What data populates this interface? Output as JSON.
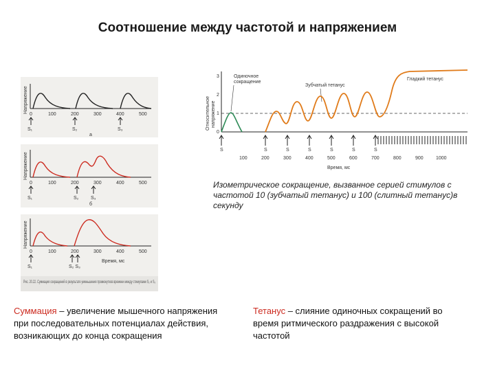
{
  "title": "Соотношение между частотой и напряжением",
  "left_panels": {
    "ylabel": "Напряжение",
    "ticks": [
      "0",
      "100",
      "200",
      "300",
      "400",
      "500"
    ],
    "panel_a": {
      "stimuli": [
        "S₁",
        "S₂",
        "S₃"
      ],
      "letter": "а",
      "color": "#222222"
    },
    "panel_b": {
      "stimuli": [
        "S₁",
        "S₂",
        "S₃"
      ],
      "letter": "б",
      "color": "#cc2a1f"
    },
    "panel_c": {
      "stimuli": [
        "S₁",
        "S₂ S₃"
      ],
      "letter": "Время, мс",
      "color": "#cc2a1f"
    },
    "figure_caption": "Рис. 20.22. Суммация сокращений в результате уменьшения промежутков времени между стимулами S₂ и S₃"
  },
  "right_chart": {
    "ylabel_1": "Относительное",
    "ylabel_2": "напряжение",
    "yticks": [
      "0",
      "1",
      "2",
      "3"
    ],
    "xticks": [
      "100",
      "200",
      "300",
      "400",
      "500",
      "600",
      "700",
      "800",
      "900",
      "1000"
    ],
    "xlabel": "Время, мс",
    "label_single_1": "Одиночное",
    "label_single_2": "сокращение",
    "label_serrated": "Зубчатый тетанус",
    "label_smooth": "Гладкий тетанус",
    "stim_label": "S",
    "colors": {
      "single": "#2e8b57",
      "tetanus": "#e07b1a"
    }
  },
  "caption_right": "Изометрическое сокращение, вызванное серией стимулов с частотой 10 (зубчатый тетанус) и 100 (слитный тетанус)в секунду",
  "note_left": {
    "term": "Суммация",
    "rest": " – увеличение мышечного напряжения при последовательных потенциалах действия, возникающих до конца сокращения"
  },
  "note_right": {
    "term": "Тетанус",
    "rest": " – слияние одиночных сокращений во время ритмического раздражения с высокой частотой"
  }
}
